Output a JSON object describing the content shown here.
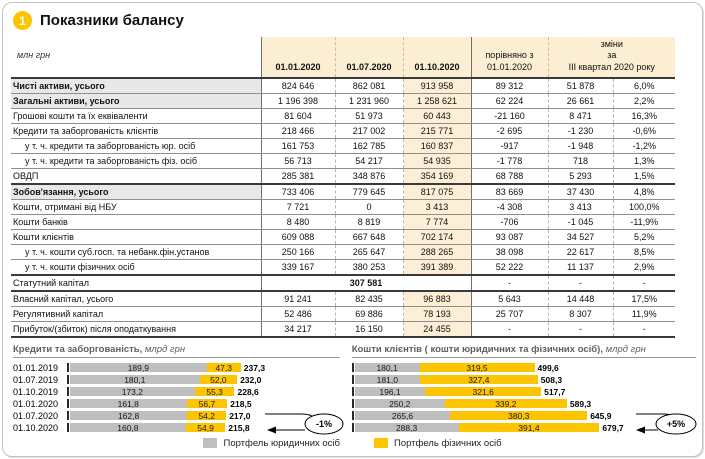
{
  "page": {
    "badge": "1",
    "title": "Показники балансу"
  },
  "colors": {
    "accent_yellow": "#FDC500",
    "bar_gray": "#BFBFBF",
    "header_cream": "#FBEED3",
    "row_shade": "#E8E8E8"
  },
  "table": {
    "unit_label": "млн грн",
    "headers": {
      "c1": "01.01.2020",
      "c2": "01.07.2020",
      "c3": "01.10.2020",
      "cmp_line1": "порівняно з",
      "cmp_line2": "01.01.2020",
      "chg_line1": "зміни",
      "chg_line2": "за",
      "chg_line3": "III квартал 2020 року"
    },
    "rows": [
      {
        "label": "Чисті активи, усього",
        "bold": true,
        "shade": true,
        "vals": [
          "824 646",
          "862 081",
          "913 958",
          "89 312",
          "51 878",
          "6,0%"
        ]
      },
      {
        "label": "Загальні активи, усього",
        "bold": true,
        "shade": true,
        "vals": [
          "1 196 398",
          "1 231 960",
          "1 258 621",
          "62 224",
          "26 661",
          "2,2%"
        ]
      },
      {
        "label": "Грошові кошти та їх еквіваленти",
        "vals": [
          "81 604",
          "51 973",
          "60 443",
          "-21 160",
          "8 471",
          "16,3%"
        ]
      },
      {
        "label": "Кредити та заборгованість клієнтів",
        "vals": [
          "218 466",
          "217 002",
          "215 771",
          "-2 695",
          "-1 230",
          "-0,6%"
        ]
      },
      {
        "label": "у т. ч. кредити та заборгованість юр. осіб",
        "indent": true,
        "vals": [
          "161 753",
          "162 785",
          "160 837",
          "-917",
          "-1 948",
          "-1,2%"
        ]
      },
      {
        "label": "у т. ч. кредити та заборгованість фіз. осіб",
        "indent": true,
        "vals": [
          "56 713",
          "54 217",
          "54 935",
          "-1 778",
          "718",
          "1,3%"
        ]
      },
      {
        "label": "ОВДП",
        "thick_bottom": true,
        "vals": [
          "285 381",
          "348 876",
          "354 169",
          "68 788",
          "5 293",
          "1,5%"
        ]
      },
      {
        "label": "Зобов'язання, усього",
        "bold": true,
        "shade": true,
        "vals": [
          "733 406",
          "779 645",
          "817 075",
          "83 669",
          "37 430",
          "4,8%"
        ]
      },
      {
        "label": "Кошти, отримані від НБУ",
        "vals": [
          "7 721",
          "0",
          "3 413",
          "-4 308",
          "3 413",
          "100,0%"
        ]
      },
      {
        "label": "Кошти банків",
        "vals": [
          "8 480",
          "8 819",
          "7 774",
          "-706",
          "-1 045",
          "-11,9%"
        ]
      },
      {
        "label": "Кошти клієнтів",
        "vals": [
          "609 088",
          "667 648",
          "702 174",
          "93 087",
          "34 527",
          "5,2%"
        ]
      },
      {
        "label": "у т. ч. кошти суб.госп. та небанк.фін.установ",
        "indent": true,
        "vals": [
          "250 166",
          "265 647",
          "288 265",
          "38 098",
          "22 617",
          "8,5%"
        ]
      },
      {
        "label": "у т. ч. кошти фізичних осіб",
        "indent": true,
        "thick_bottom": true,
        "vals": [
          "339 167",
          "380 253",
          "391 389",
          "52 222",
          "11 137",
          "2,9%"
        ]
      },
      {
        "label": "Статутний капітал",
        "merged": "307 581",
        "thick_bottom": true,
        "vals": [
          null,
          null,
          null,
          "-",
          "-",
          "-"
        ]
      },
      {
        "label": "Власний капітал, усього",
        "vals": [
          "91 241",
          "82 435",
          "96 883",
          "5 643",
          "14 448",
          "17,5%"
        ]
      },
      {
        "label": "Регулятивний капітал",
        "vals": [
          "52 486",
          "69 886",
          "78 193",
          "25 707",
          "8 307",
          "11,9%"
        ]
      },
      {
        "label": "Прибуток/(збиток) після оподаткування",
        "thick_bottom": true,
        "vals": [
          "34 217",
          "16 150",
          "24 455",
          "-",
          "-",
          "-"
        ]
      }
    ]
  },
  "chart_data": [
    {
      "type": "bar",
      "orientation": "horizontal-stacked",
      "title": "Кредити та заборгованість,",
      "unit": "млрд грн",
      "categories": [
        "01.01.2019",
        "01.07.2019",
        "01.10.2019",
        "01.01.2020",
        "01.07.2020",
        "01.10.2020"
      ],
      "series": [
        {
          "name": "Портфель юридичних осіб",
          "color": "#BFBFBF",
          "values": [
            189.9,
            180.1,
            173.2,
            161.8,
            162.8,
            160.8
          ]
        },
        {
          "name": "Портфель фізичних осіб",
          "color": "#FDC500",
          "values": [
            47.3,
            52.0,
            55.3,
            56.7,
            54.2,
            54.9
          ]
        }
      ],
      "totals": [
        237.3,
        232.0,
        228.6,
        218.5,
        217.0,
        215.8
      ],
      "annotation": "-1%"
    },
    {
      "type": "bar",
      "orientation": "horizontal-stacked",
      "title": "Кошти клієнтів ( кошти юридичних та фізичних осіб),",
      "unit": "млрд грн",
      "categories": [
        "01.01.2019",
        "01.07.2019",
        "01.10.2019",
        "01.01.2020",
        "01.07.2020",
        "01.10.2020"
      ],
      "series": [
        {
          "name": "Портфель юридичних осіб",
          "color": "#BFBFBF",
          "values": [
            180.1,
            181.0,
            196.1,
            250.2,
            265.6,
            288.3
          ]
        },
        {
          "name": "Портфель фізичних осіб",
          "color": "#FDC500",
          "values": [
            319.5,
            327.4,
            321.6,
            339.2,
            380.3,
            391.4
          ]
        }
      ],
      "totals": [
        499.6,
        508.3,
        517.7,
        589.3,
        645.9,
        679.7
      ],
      "annotation": "+5%"
    }
  ],
  "legend": [
    {
      "label": "Портфель юридичних осіб",
      "color": "#BFBFBF"
    },
    {
      "label": "Портфель фізичних осіб",
      "color": "#FDC500"
    }
  ]
}
